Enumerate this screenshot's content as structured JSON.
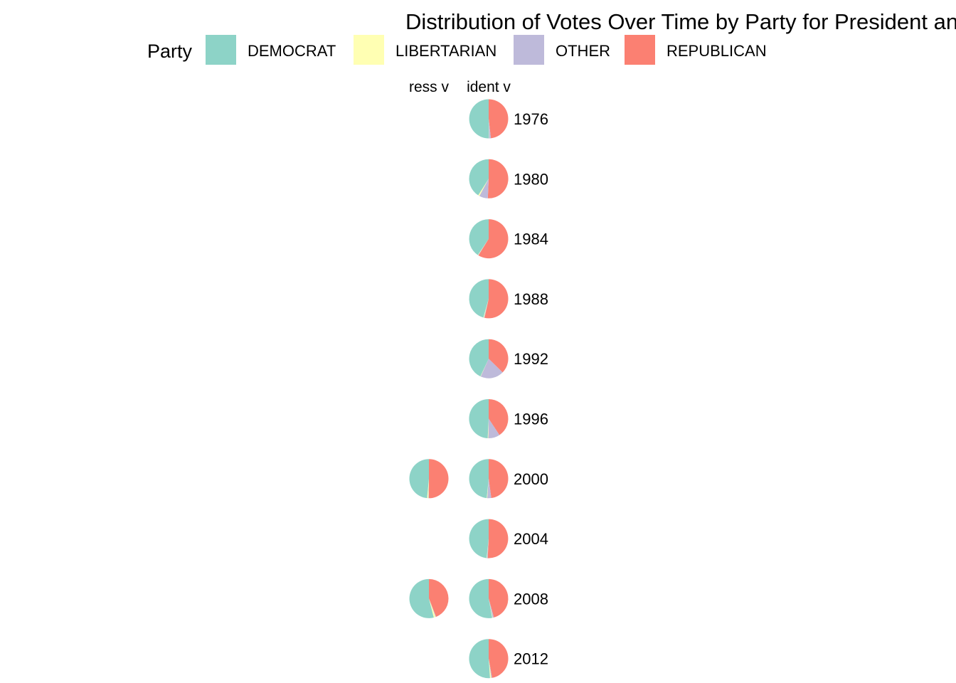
{
  "chart_data": {
    "type": "pie",
    "title": "Distribution of Votes Over Time by Party for President and Congress",
    "legend": {
      "title": "Party",
      "position": "top",
      "entries": [
        {
          "name": "DEMOCRAT",
          "color": "#8DD3C7"
        },
        {
          "name": "LIBERTARIAN",
          "color": "#FFFFB3"
        },
        {
          "name": "OTHER",
          "color": "#BEBADA"
        },
        {
          "name": "REPUBLICAN",
          "color": "#FB8072"
        }
      ]
    },
    "facet_columns": [
      "ress  v",
      "ident  v"
    ],
    "years": [
      "1976",
      "1980",
      "1984",
      "1988",
      "1992",
      "1996",
      "2000",
      "2004",
      "2008",
      "2012"
    ],
    "panels": [
      {
        "column": 1,
        "year": "1976",
        "shares": {
          "DEMOCRAT": 50.1,
          "LIBERTARIAN": 0.2,
          "OTHER": 1.5,
          "REPUBLICAN": 48.2
        }
      },
      {
        "column": 1,
        "year": "1980",
        "shares": {
          "DEMOCRAT": 41.0,
          "LIBERTARIAN": 1.1,
          "OTHER": 7.2,
          "REPUBLICAN": 50.7
        }
      },
      {
        "column": 1,
        "year": "1984",
        "shares": {
          "DEMOCRAT": 40.6,
          "LIBERTARIAN": 0.3,
          "OTHER": 0.3,
          "REPUBLICAN": 58.8
        }
      },
      {
        "column": 1,
        "year": "1988",
        "shares": {
          "DEMOCRAT": 45.6,
          "LIBERTARIAN": 0.5,
          "OTHER": 0.5,
          "REPUBLICAN": 53.4
        }
      },
      {
        "column": 1,
        "year": "1992",
        "shares": {
          "DEMOCRAT": 43.0,
          "LIBERTARIAN": 0.3,
          "OTHER": 19.3,
          "REPUBLICAN": 37.4
        }
      },
      {
        "column": 1,
        "year": "1996",
        "shares": {
          "DEMOCRAT": 49.2,
          "LIBERTARIAN": 0.5,
          "OTHER": 9.6,
          "REPUBLICAN": 40.7
        }
      },
      {
        "column": 0,
        "year": "2000",
        "shares": {
          "DEMOCRAT": 48.5,
          "LIBERTARIAN": 1.0,
          "OTHER": 0.5,
          "REPUBLICAN": 50.0
        }
      },
      {
        "column": 1,
        "year": "2000",
        "shares": {
          "DEMOCRAT": 48.4,
          "LIBERTARIAN": 0.4,
          "OTHER": 3.3,
          "REPUBLICAN": 47.9
        }
      },
      {
        "column": 1,
        "year": "2004",
        "shares": {
          "DEMOCRAT": 48.3,
          "LIBERTARIAN": 0.3,
          "OTHER": 0.6,
          "REPUBLICAN": 50.8
        }
      },
      {
        "column": 0,
        "year": "2008",
        "shares": {
          "DEMOCRAT": 54.0,
          "LIBERTARIAN": 1.5,
          "OTHER": 0.5,
          "REPUBLICAN": 44.0
        }
      },
      {
        "column": 1,
        "year": "2008",
        "shares": {
          "DEMOCRAT": 52.9,
          "LIBERTARIAN": 0.4,
          "OTHER": 1.0,
          "REPUBLICAN": 45.7
        }
      },
      {
        "column": 1,
        "year": "2012",
        "shares": {
          "DEMOCRAT": 51.1,
          "LIBERTARIAN": 1.0,
          "OTHER": 0.7,
          "REPUBLICAN": 47.2
        }
      }
    ]
  }
}
